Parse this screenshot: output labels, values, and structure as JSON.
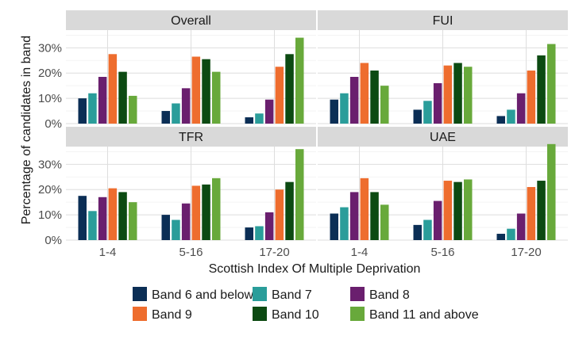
{
  "chart_data": {
    "type": "bar",
    "xlabel": "Scottish Index Of Multiple Deprivation",
    "ylabel": "Percentage of candidates in band",
    "categories": [
      "1-4",
      "5-16",
      "17-20"
    ],
    "yticks": [
      "0%",
      "10%",
      "20%",
      "30%"
    ],
    "ylim": [
      0,
      37
    ],
    "grid": true,
    "legend_position": "bottom",
    "series_colors": [
      "#0b2e55",
      "#2a9d9a",
      "#6a1f6e",
      "#ee6d2e",
      "#0c4a12",
      "#68a93b"
    ],
    "series_names": [
      "Band 6 and below",
      "Band 7",
      "Band 8",
      "Band 9",
      "Band 10",
      "Band 11 and above"
    ],
    "panels": [
      {
        "title": "Overall",
        "values": [
          [
            10,
            12,
            18.5,
            27.5,
            20.5,
            11
          ],
          [
            5,
            8,
            14,
            26.5,
            25.5,
            20.5
          ],
          [
            2.5,
            4,
            9.5,
            22.5,
            27.5,
            34
          ]
        ]
      },
      {
        "title": "FUI",
        "values": [
          [
            9.5,
            12,
            18.5,
            24,
            21,
            15
          ],
          [
            5.5,
            9,
            16,
            23,
            24,
            22.5
          ],
          [
            3,
            5.5,
            12,
            21,
            27,
            31.5
          ]
        ]
      },
      {
        "title": "TFR",
        "values": [
          [
            17.5,
            11.5,
            17,
            20.5,
            19,
            15
          ],
          [
            10,
            8,
            14.5,
            21.5,
            22,
            24.5
          ],
          [
            5,
            5.5,
            11,
            20,
            23,
            36
          ]
        ]
      },
      {
        "title": "UAE",
        "values": [
          [
            10.5,
            13,
            19,
            24.5,
            19,
            14
          ],
          [
            6,
            8,
            15.5,
            23.5,
            23,
            24
          ],
          [
            2.5,
            4.5,
            10.5,
            21,
            23.5,
            38
          ]
        ]
      }
    ]
  }
}
